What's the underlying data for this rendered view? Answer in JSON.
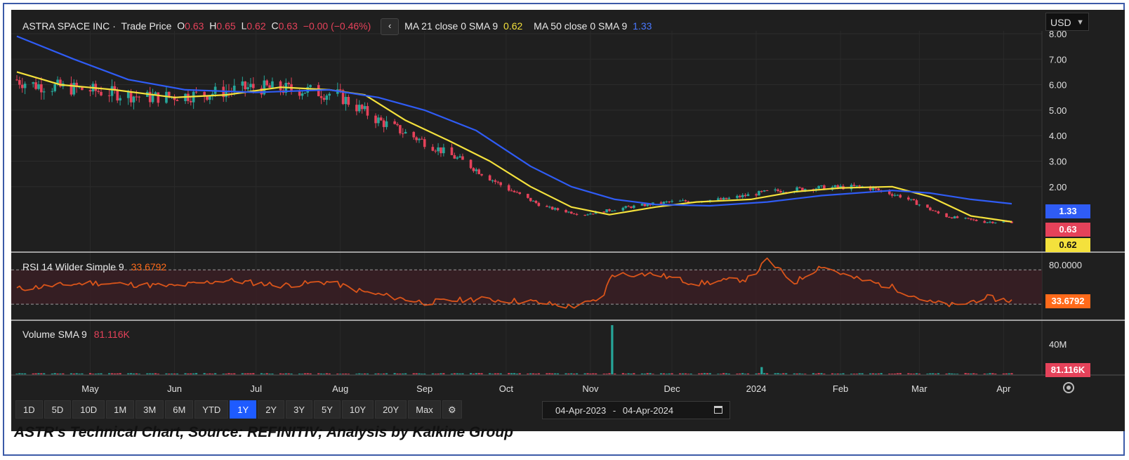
{
  "header": {
    "symbol": "ASTRA SPACE INC",
    "series_type": "Trade Price",
    "open_label": "O",
    "open": "0.63",
    "high_label": "H",
    "high": "0.65",
    "low_label": "L",
    "low": "0.62",
    "close_label": "C",
    "close": "0.63",
    "change": "−0.00 (−0.46%)",
    "collapse_glyph": "‹",
    "ma21_label": "MA 21 close 0 SMA 9",
    "ma21_value": "0.62",
    "ma50_label": "MA 50 close 0 SMA 9",
    "ma50_value": "1.33",
    "currency": "USD"
  },
  "rsi_header": {
    "label": "RSI 14 Wilder Simple 9",
    "value": "33.6792"
  },
  "volume_header": {
    "label": "Volume SMA 9",
    "value": "81.116K"
  },
  "badges": {
    "ma50": "1.33",
    "close": "0.63",
    "ma21": "0.62",
    "rsi": "33.6792",
    "volume": "81.116K"
  },
  "colors": {
    "up": "#26a69a",
    "down": "#e5425a",
    "ma21": "#f4e13c",
    "ma50": "#2f5cf5",
    "rsi": "#d9541a",
    "background": "#1f1f1f"
  },
  "range_buttons": [
    "1D",
    "5D",
    "10D",
    "1M",
    "3M",
    "6M",
    "YTD",
    "1Y",
    "2Y",
    "3Y",
    "5Y",
    "10Y",
    "20Y",
    "Max"
  ],
  "active_range": "1Y",
  "date_range": {
    "from": "04-Apr-2023",
    "sep": "-",
    "to": "04-Apr-2024"
  },
  "caption": "ASTR's Technical Chart, Source: REFINITIV; Analysis by Kalkine Group",
  "chart_data": [
    {
      "type": "candlestick",
      "x_axis_labels": [
        "May",
        "Jun",
        "Jul",
        "Aug",
        "Sep",
        "Oct",
        "Nov",
        "Dec",
        "2024",
        "Feb",
        "Mar",
        "Apr"
      ],
      "y_tick_labels": [
        "8.00",
        "7.00",
        "6.00",
        "5.00",
        "4.00",
        "3.00",
        "2.00"
      ],
      "ylim": [
        0.3,
        8.1
      ],
      "scale": "linear",
      "grid": true,
      "series": [
        {
          "name": "MA 21 close 0 SMA 9",
          "role": "ma21",
          "x": [
            "2023-04-04",
            "2023-04-20",
            "2023-05-10",
            "2023-06-01",
            "2023-06-20",
            "2023-07-10",
            "2023-07-28",
            "2023-08-10",
            "2023-08-25",
            "2023-09-10",
            "2023-09-25",
            "2023-10-10",
            "2023-10-25",
            "2023-11-08",
            "2023-11-25",
            "2023-12-10",
            "2023-12-30",
            "2024-01-15",
            "2024-02-01",
            "2024-02-20",
            "2024-03-05",
            "2024-03-20",
            "2024-04-04"
          ],
          "values": [
            6.5,
            6.0,
            5.8,
            5.5,
            5.6,
            5.9,
            5.8,
            5.6,
            4.6,
            3.8,
            3.0,
            2.0,
            1.2,
            0.9,
            1.2,
            1.4,
            1.5,
            1.8,
            1.95,
            2.0,
            1.6,
            0.85,
            0.62
          ]
        },
        {
          "name": "MA 50 close 0 SMA 9",
          "role": "ma50",
          "x": [
            "2023-04-04",
            "2023-04-25",
            "2023-05-15",
            "2023-06-05",
            "2023-07-01",
            "2023-07-28",
            "2023-08-15",
            "2023-09-01",
            "2023-09-20",
            "2023-10-10",
            "2023-10-25",
            "2023-11-10",
            "2023-11-25",
            "2023-12-15",
            "2024-01-05",
            "2024-01-25",
            "2024-02-20",
            "2024-03-05",
            "2024-03-20",
            "2024-04-04"
          ],
          "values": [
            7.9,
            7.0,
            6.2,
            5.8,
            5.7,
            5.8,
            5.5,
            5.0,
            4.2,
            2.8,
            2.0,
            1.5,
            1.3,
            1.25,
            1.4,
            1.65,
            1.85,
            1.75,
            1.5,
            1.33
          ]
        }
      ],
      "last": {
        "open": 0.63,
        "high": 0.65,
        "low": 0.62,
        "close": 0.63,
        "ma21": 0.62,
        "ma50": 1.33
      }
    },
    {
      "type": "line",
      "title": "RSI 14 Wilder Simple 9",
      "y_tick_labels": [
        "80.0000"
      ],
      "band": [
        30,
        70
      ],
      "ylim": [
        20,
        85
      ],
      "series": [
        {
          "name": "RSI 14 Wilder Simple 9",
          "x": [
            "2023-04-04",
            "2023-05-01",
            "2023-06-01",
            "2023-06-20",
            "2023-07-10",
            "2023-07-28",
            "2023-08-10",
            "2023-09-01",
            "2023-09-20",
            "2023-10-10",
            "2023-10-25",
            "2023-11-05",
            "2023-11-09",
            "2023-11-25",
            "2023-12-10",
            "2023-12-30",
            "2024-01-05",
            "2024-01-15",
            "2024-01-25",
            "2024-02-05",
            "2024-02-20",
            "2024-03-05",
            "2024-03-15",
            "2024-03-25",
            "2024-04-04"
          ],
          "values": [
            48,
            55,
            51,
            58,
            52,
            56,
            44,
            32,
            36,
            33,
            27,
            35,
            65,
            65,
            54,
            60,
            82,
            55,
            75,
            61,
            50,
            32,
            28,
            38,
            34
          ]
        }
      ],
      "last_value": 33.6792
    },
    {
      "type": "bar",
      "title": "Volume SMA 9",
      "y_tick_labels": [
        "40M"
      ],
      "ylim": [
        0,
        75
      ],
      "spikes": [
        {
          "x": "2023-11-09",
          "value": 68
        },
        {
          "x": "2024-01-03",
          "value": 10
        }
      ],
      "baseline_value": 1.2,
      "last_value": "81.116K"
    }
  ]
}
